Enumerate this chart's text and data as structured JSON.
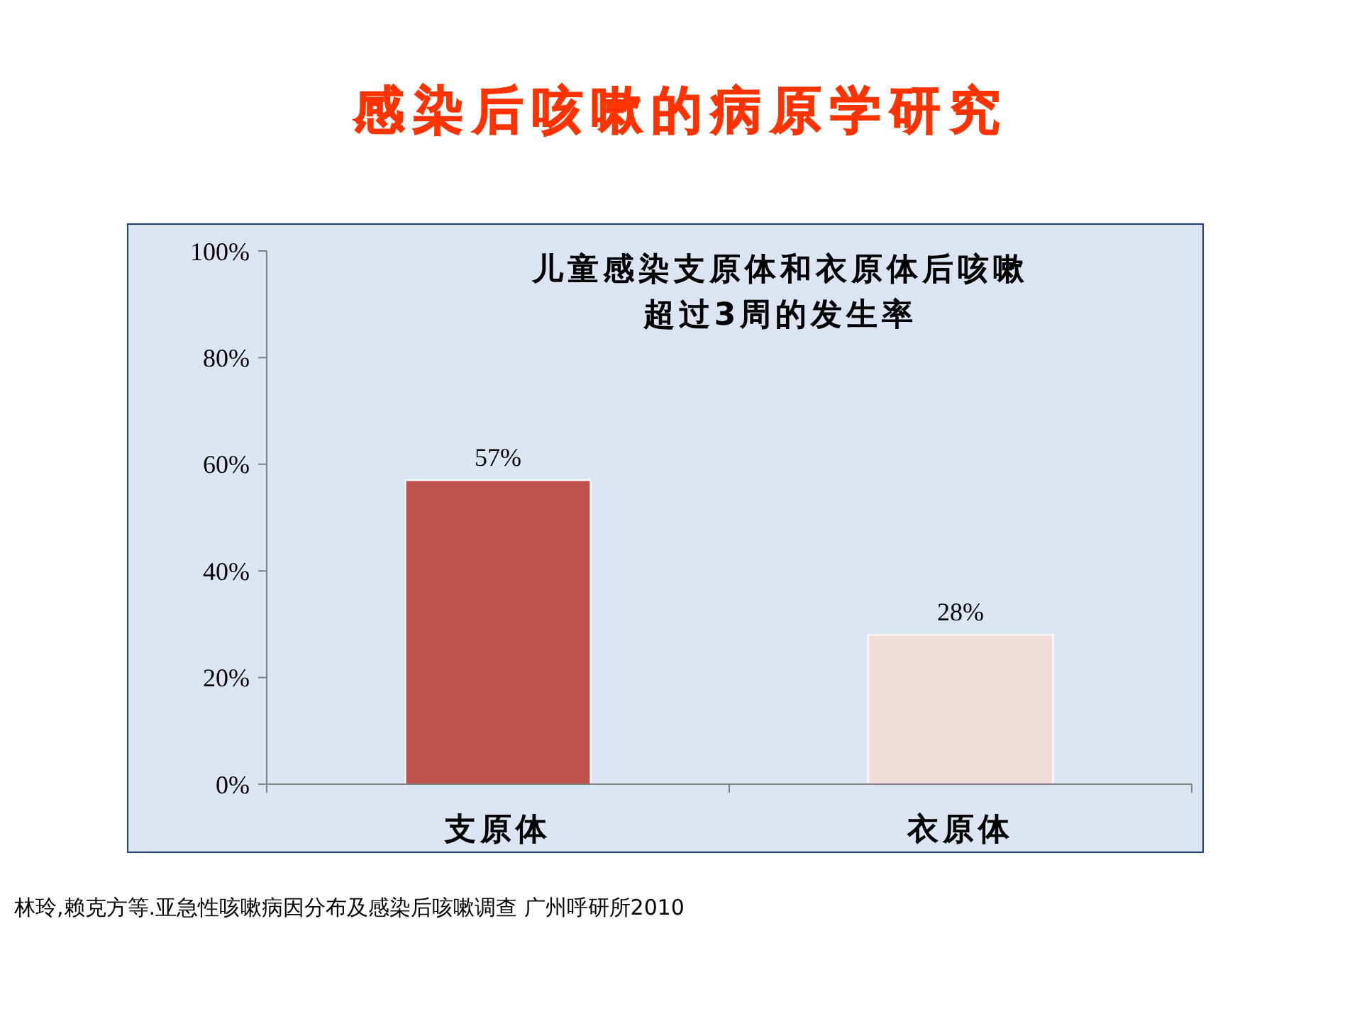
{
  "chart_data": {
    "type": "bar",
    "title": "感染后咳嗽的病原学研究",
    "subtitle": "儿童感染支原体和衣原体后咳嗽超过3周的发生率",
    "categories": [
      "支原体",
      "衣原体"
    ],
    "values": [
      57,
      28
    ],
    "colors": [
      "#c0504d",
      "#f2dcdb"
    ],
    "value_labels": [
      "57%",
      "28%"
    ],
    "ylim": [
      0,
      100
    ],
    "yticks": [
      {
        "value": 0,
        "label": "0%"
      },
      {
        "value": 20,
        "label": "20%"
      },
      {
        "value": 40,
        "label": "40%"
      },
      {
        "value": 60,
        "label": "60%"
      },
      {
        "value": 80,
        "label": "80%"
      },
      {
        "value": 100,
        "label": "100%"
      }
    ],
    "grid": false,
    "annotations": [
      "林玲,赖克方等.亚急性咳嗽病因分布及感染后咳嗽调查  广州呼研所2010"
    ]
  }
}
